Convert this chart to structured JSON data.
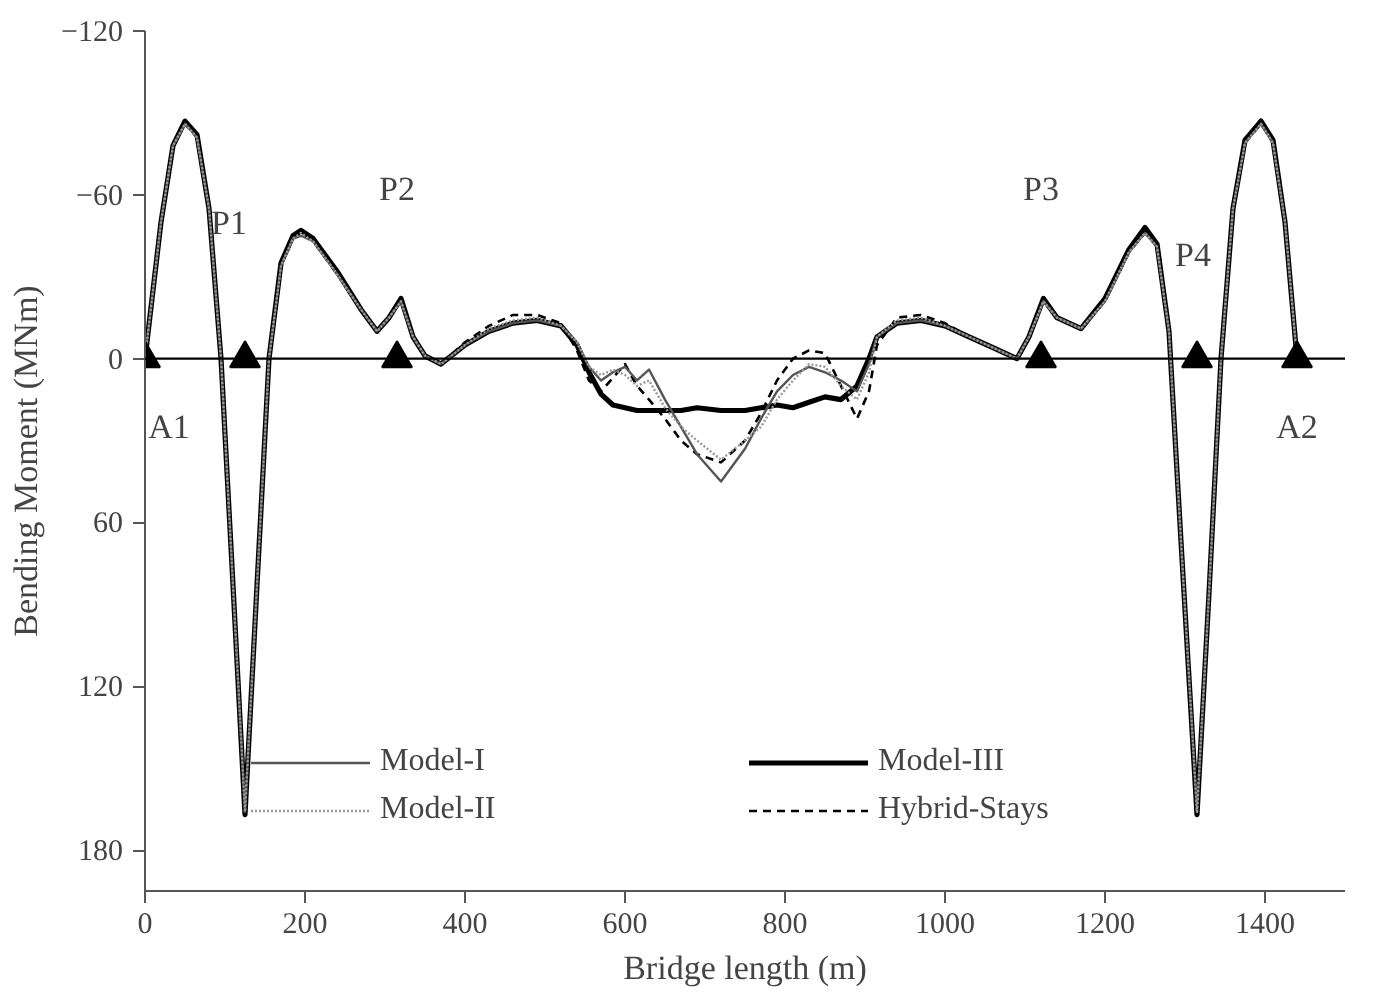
{
  "chart_data": {
    "type": "line",
    "xlabel": "Bridge length (m)",
    "ylabel": "Bending Moment (MNm)",
    "x": [
      0,
      20,
      35,
      50,
      65,
      80,
      95,
      110,
      125,
      140,
      155,
      170,
      185,
      195,
      210,
      240,
      270,
      290,
      305,
      320,
      335,
      350,
      370,
      400,
      430,
      460,
      490,
      520,
      540,
      555,
      570,
      585,
      600,
      615,
      630,
      650,
      670,
      690,
      720,
      750,
      770,
      790,
      810,
      830,
      850,
      870,
      890,
      905,
      915,
      940,
      970,
      1000,
      1030,
      1060,
      1090,
      1105,
      1123,
      1140,
      1170,
      1200,
      1230,
      1250,
      1265,
      1280,
      1295,
      1315,
      1330,
      1345,
      1360,
      1375,
      1395,
      1410,
      1425,
      1440
    ],
    "series": [
      {
        "name": "Model-I",
        "color": "#555555",
        "line_style": "solid",
        "values": [
          0,
          -50,
          -78,
          -86,
          -81,
          -55,
          0,
          83,
          166,
          83,
          0,
          -34,
          -44,
          -45,
          -43,
          -31,
          -18,
          -10,
          -15,
          -21,
          -8,
          -1,
          2,
          -5,
          -10,
          -13,
          -14,
          -12,
          -6,
          3,
          8,
          5,
          3,
          8,
          4,
          15,
          25,
          35,
          45,
          33,
          22,
          12,
          6,
          3,
          5,
          8,
          12,
          2,
          -8,
          -13,
          -14,
          -12,
          -8,
          -4,
          0,
          -8,
          -21,
          -15,
          -11,
          -21,
          -39,
          -46,
          -41,
          -10,
          67,
          166,
          86,
          0,
          -55,
          -79,
          -86,
          -79,
          -50,
          0
        ]
      },
      {
        "name": "Model-II",
        "color": "#999999",
        "line_style": "dotted",
        "values": [
          0,
          -50,
          -78,
          -86,
          -81,
          -55,
          0,
          83,
          166,
          83,
          0,
          -34,
          -44,
          -46,
          -43,
          -31,
          -18,
          -10,
          -15,
          -21,
          -8,
          -1,
          2,
          -5,
          -11,
          -14,
          -15,
          -12,
          -6,
          3,
          6,
          4,
          6,
          10,
          8,
          18,
          25,
          30,
          37,
          30,
          25,
          15,
          8,
          2,
          3,
          10,
          15,
          5,
          -8,
          -14,
          -15,
          -12,
          -8,
          -4,
          0,
          -8,
          -21,
          -15,
          -11,
          -21,
          -39,
          -46,
          -41,
          -10,
          67,
          166,
          86,
          0,
          -55,
          -79,
          -86,
          -79,
          -50,
          0
        ]
      },
      {
        "name": "Model-III",
        "color": "#000000",
        "line_style": "solid",
        "values": [
          0,
          -50,
          -78,
          -87,
          -82,
          -55,
          0,
          83,
          167,
          83,
          0,
          -35,
          -45,
          -47,
          -44,
          -32,
          -18,
          -10,
          -15,
          -22,
          -8,
          -1,
          2,
          -5,
          -10,
          -13,
          -14,
          -12,
          -5,
          5,
          13,
          17,
          18,
          19,
          19,
          19,
          19,
          18,
          19,
          19,
          18,
          17,
          18,
          16,
          14,
          15,
          10,
          0,
          -8,
          -13,
          -14,
          -12,
          -8,
          -4,
          0,
          -8,
          -22,
          -15,
          -11,
          -22,
          -40,
          -48,
          -42,
          -10,
          67,
          167,
          86,
          0,
          -55,
          -80,
          -87,
          -80,
          -50,
          0
        ]
      },
      {
        "name": "Hybrid-Stays",
        "color": "#000000",
        "line_style": "dashed",
        "values": [
          0,
          -50,
          -78,
          -86,
          -81,
          -55,
          0,
          83,
          166,
          83,
          0,
          -34,
          -44,
          -46,
          -43,
          -31,
          -18,
          -10,
          -15,
          -21,
          -8,
          -1,
          2,
          -6,
          -12,
          -16,
          -16,
          -13,
          -3,
          8,
          12,
          7,
          2,
          10,
          15,
          22,
          30,
          35,
          38,
          30,
          20,
          8,
          0,
          -3,
          -2,
          10,
          22,
          12,
          -5,
          -15,
          -16,
          -13,
          -8,
          -4,
          0,
          -8,
          -21,
          -15,
          -11,
          -21,
          -39,
          -46,
          -41,
          -10,
          67,
          166,
          86,
          0,
          -55,
          -79,
          -86,
          -79,
          -50,
          0
        ]
      },
      {
        "type": "scatter",
        "color": "#000000",
        "marker": "triangle",
        "x": [
          0,
          125,
          315,
          1120,
          1315,
          1440
        ],
        "values": [
          0,
          0,
          0,
          0,
          0,
          0
        ]
      }
    ],
    "annotations": [
      "A1",
      "P1",
      "P2",
      "P3",
      "P4",
      "A2"
    ],
    "ref_lines": [
      {
        "axis": "y",
        "value": 0,
        "color": "#000000"
      }
    ],
    "xlim": [
      0,
      1500
    ],
    "ylim": [
      195,
      -120
    ],
    "xticks": [
      0,
      200,
      400,
      600,
      800,
      1000,
      1200,
      1400
    ],
    "yticks": [
      -120,
      -60,
      0,
      60,
      120,
      180
    ],
    "grid": false,
    "legend": "bottom"
  }
}
